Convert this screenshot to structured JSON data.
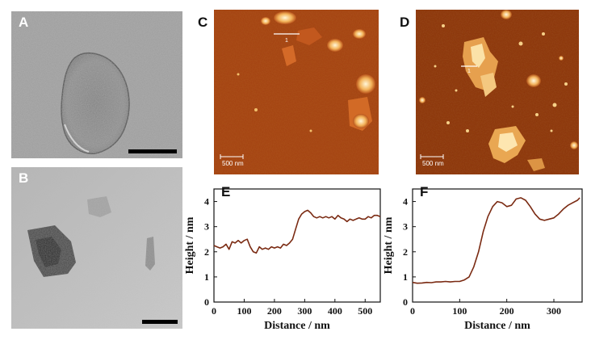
{
  "panels": {
    "A": {
      "letter": "A"
    },
    "B": {
      "letter": "B"
    },
    "C": {
      "letter": "C",
      "scale_label": "500 nm",
      "line_marker": "1"
    },
    "D": {
      "letter": "D",
      "scale_label": "500 nm",
      "line_marker": "1"
    },
    "E": {
      "letter": "E"
    },
    "F": {
      "letter": "F"
    }
  },
  "chart_data": [
    {
      "type": "line",
      "panel": "E",
      "xlabel": "Distance / nm",
      "ylabel": "Height / nm",
      "xlim": [
        0,
        550
      ],
      "ylim": [
        0,
        4.5
      ],
      "xticks": [
        0,
        100,
        200,
        300,
        400,
        500
      ],
      "yticks": [
        0,
        1,
        2,
        3,
        4
      ],
      "color": "#7a2a12",
      "x": [
        0,
        10,
        20,
        30,
        40,
        50,
        60,
        70,
        80,
        90,
        100,
        110,
        120,
        130,
        140,
        150,
        160,
        170,
        180,
        190,
        200,
        210,
        220,
        230,
        240,
        250,
        260,
        270,
        280,
        290,
        300,
        310,
        320,
        330,
        340,
        350,
        360,
        370,
        380,
        390,
        400,
        410,
        420,
        430,
        440,
        450,
        460,
        470,
        480,
        490,
        500,
        510,
        520,
        530,
        540,
        550
      ],
      "y": [
        2.25,
        2.2,
        2.15,
        2.2,
        2.3,
        2.1,
        2.4,
        2.35,
        2.45,
        2.35,
        2.45,
        2.5,
        2.2,
        2.0,
        1.95,
        2.2,
        2.1,
        2.15,
        2.1,
        2.2,
        2.15,
        2.2,
        2.15,
        2.3,
        2.25,
        2.35,
        2.5,
        2.9,
        3.3,
        3.5,
        3.6,
        3.65,
        3.55,
        3.4,
        3.35,
        3.4,
        3.35,
        3.4,
        3.35,
        3.4,
        3.3,
        3.45,
        3.35,
        3.3,
        3.2,
        3.3,
        3.25,
        3.3,
        3.35,
        3.3,
        3.3,
        3.4,
        3.35,
        3.45,
        3.45,
        3.4
      ]
    },
    {
      "type": "line",
      "panel": "F",
      "xlabel": "Distance / nm",
      "ylabel": "Height / nm",
      "xlim": [
        0,
        360
      ],
      "ylim": [
        0,
        4.5
      ],
      "xticks": [
        0,
        100,
        200,
        300
      ],
      "yticks": [
        0,
        1,
        2,
        3,
        4
      ],
      "color": "#7a2a12",
      "x": [
        0,
        10,
        20,
        30,
        40,
        50,
        60,
        70,
        80,
        90,
        100,
        110,
        120,
        130,
        140,
        150,
        160,
        170,
        180,
        190,
        200,
        210,
        220,
        230,
        240,
        250,
        260,
        270,
        280,
        290,
        300,
        310,
        320,
        330,
        340,
        350,
        355
      ],
      "y": [
        0.78,
        0.75,
        0.76,
        0.78,
        0.77,
        0.8,
        0.8,
        0.82,
        0.8,
        0.82,
        0.82,
        0.88,
        1.0,
        1.4,
        2.0,
        2.8,
        3.4,
        3.8,
        4.0,
        3.95,
        3.8,
        3.85,
        4.1,
        4.15,
        4.05,
        3.8,
        3.5,
        3.3,
        3.25,
        3.3,
        3.35,
        3.5,
        3.7,
        3.85,
        3.95,
        4.05,
        4.15
      ]
    }
  ]
}
